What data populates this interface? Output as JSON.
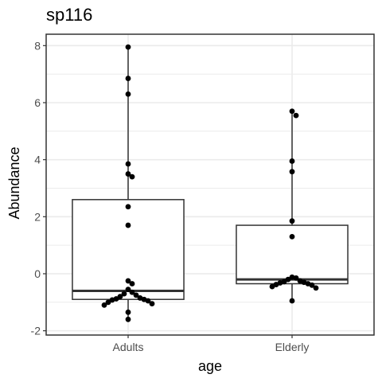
{
  "chart_data": {
    "type": "box",
    "title": "sp116",
    "xlabel": "age",
    "ylabel": "Abundance",
    "categories": [
      "Adults",
      "Elderly"
    ],
    "ylim": [
      -2.15,
      8.4
    ],
    "yticks": [
      -2,
      0,
      2,
      4,
      6,
      8
    ],
    "grid": true,
    "boxes": [
      {
        "category": "Adults",
        "q1": -0.9,
        "median": -0.6,
        "q3": 2.6,
        "whisker_low": -1.6,
        "whisker_high": 7.95
      },
      {
        "category": "Elderly",
        "q1": -0.35,
        "median": -0.2,
        "q3": 1.7,
        "whisker_low": -0.95,
        "whisker_high": 5.7
      }
    ],
    "points": [
      {
        "category": "Adults",
        "values": [
          7.95,
          6.85,
          6.3,
          3.85,
          3.5,
          3.4,
          2.35,
          1.7,
          -0.25,
          -0.35,
          -0.55,
          -0.65,
          -0.7,
          -0.75,
          -0.8,
          -0.85,
          -0.88,
          -0.9,
          -0.92,
          -0.95,
          -1.0,
          -1.05,
          -1.1,
          -1.35,
          -1.6
        ]
      },
      {
        "category": "Elderly",
        "values": [
          5.7,
          5.55,
          3.95,
          3.58,
          1.85,
          1.3,
          -0.12,
          -0.15,
          -0.2,
          -0.25,
          -0.28,
          -0.3,
          -0.32,
          -0.35,
          -0.38,
          -0.4,
          -0.45,
          -0.5,
          -0.95
        ]
      }
    ],
    "colors": {
      "panel_border": "#333333",
      "grid": "#ebebeb",
      "points": "#000000",
      "box": "#333333"
    }
  }
}
